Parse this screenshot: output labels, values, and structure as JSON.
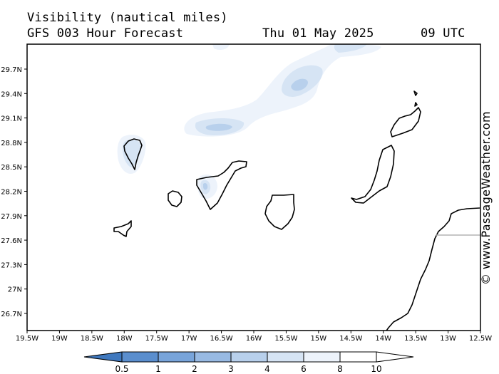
{
  "header": {
    "title": "Visibility (nautical miles)",
    "subtitle": "GFS 003 Hour Forecast",
    "date": "Thu 01 May 2025",
    "time": "09 UTC"
  },
  "credit": "© www.PassageWeather.com",
  "map": {
    "lat_labels": [
      "29.7N",
      "29.4N",
      "29.1N",
      "28.8N",
      "28.5N",
      "28.2N",
      "27.9N",
      "27.6N",
      "27.3N",
      "27N",
      "26.7N"
    ],
    "lon_labels": [
      "19.5W",
      "19W",
      "18.5W",
      "18W",
      "17.5W",
      "17W",
      "16.5W",
      "16W",
      "15.5W",
      "15W",
      "14.5W",
      "14W",
      "13.5W",
      "13W",
      "12.5W"
    ],
    "extent": {
      "lon_min": -19.5,
      "lon_max": -12.5,
      "lat_min": 26.55,
      "lat_max": 29.98
    }
  },
  "colorbar": {
    "labels": [
      "0.5",
      "1",
      "2",
      "3",
      "4",
      "6",
      "8",
      "10"
    ],
    "colors": [
      "#3f78be",
      "#5a8ece",
      "#78a4da",
      "#98bae3",
      "#b8d0ec",
      "#d6e4f4",
      "#edf3fb",
      "#ffffff"
    ],
    "unit": "nautical miles"
  }
}
